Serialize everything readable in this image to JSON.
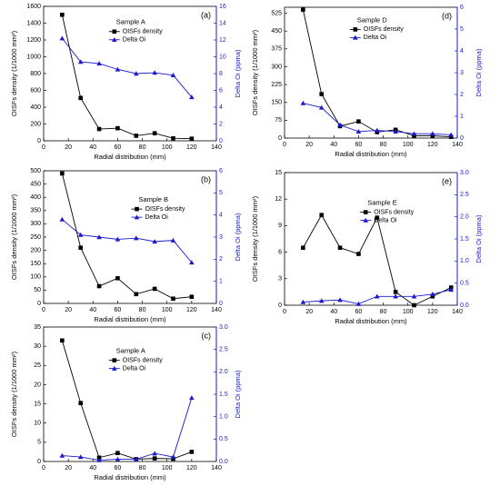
{
  "chart_data": [
    {
      "type": "line",
      "panel_label": "(a)",
      "legend_title": "Sample A",
      "x_label": "Radial distribution (mm)",
      "y_label": "OISFs density (1/1000 mm²)",
      "y2_label": "Delta Oi (ppma)",
      "xlim": [
        0,
        140
      ],
      "xticks": [
        0,
        20,
        40,
        60,
        80,
        100,
        120,
        140
      ],
      "ylim": [
        0,
        1600
      ],
      "yticks": [
        0,
        200,
        400,
        600,
        800,
        1000,
        1200,
        1400,
        1600
      ],
      "y2lim": [
        0,
        16
      ],
      "y2ticks": [
        0,
        2,
        4,
        6,
        8,
        10,
        12,
        14,
        16
      ],
      "x": [
        15,
        30,
        45,
        60,
        75,
        90,
        105,
        120
      ],
      "series": [
        {
          "name": "OISFs density",
          "color": "#000000",
          "marker": "square",
          "values": [
            1500,
            510,
            140,
            150,
            60,
            90,
            30,
            25
          ]
        },
        {
          "name": "Delta Oi",
          "color": "#1a1acc",
          "marker": "triangle",
          "axis": "y2",
          "values": [
            12.2,
            9.4,
            9.2,
            8.5,
            8.0,
            8.1,
            7.8,
            5.2
          ]
        }
      ]
    },
    {
      "type": "line",
      "panel_label": "(d)",
      "legend_title": "Sample D",
      "x_label": "Radial distribution (mm)",
      "y_label": "OISFs density (1/1000 mm²)",
      "y2_label": "Delta Oi (ppma)",
      "xlim": [
        0,
        140
      ],
      "xticks": [
        0,
        20,
        40,
        60,
        80,
        100,
        120,
        140
      ],
      "ylim": [
        0,
        550
      ],
      "yticks": [
        0,
        75,
        150,
        225,
        300,
        375,
        450,
        525
      ],
      "y2lim": [
        0,
        6
      ],
      "y2ticks": [
        0,
        1,
        2,
        3,
        4,
        5,
        6
      ],
      "x": [
        15,
        30,
        45,
        60,
        75,
        90,
        105,
        120,
        135
      ],
      "series": [
        {
          "name": "OISFs density",
          "color": "#000000",
          "marker": "square",
          "values": [
            540,
            185,
            50,
            70,
            25,
            35,
            10,
            10,
            5
          ]
        },
        {
          "name": "Delta Oi",
          "color": "#1a1acc",
          "marker": "triangle",
          "axis": "y2",
          "values": [
            1.6,
            1.4,
            0.6,
            0.3,
            0.35,
            0.3,
            0.2,
            0.2,
            0.15
          ]
        }
      ]
    },
    {
      "type": "line",
      "panel_label": "(b)",
      "legend_title": "Sample B",
      "x_label": "Radial distribution (mm)",
      "y_label": "OISFs density (1/1000 mm²)",
      "y2_label": "Delta Oi (ppma)",
      "xlim": [
        0,
        140
      ],
      "xticks": [
        0,
        20,
        40,
        60,
        80,
        100,
        120,
        140
      ],
      "ylim": [
        0,
        500
      ],
      "yticks": [
        0,
        50,
        100,
        150,
        200,
        250,
        300,
        350,
        400,
        450,
        500
      ],
      "y2lim": [
        0,
        6
      ],
      "y2ticks": [
        0,
        1,
        2,
        3,
        4,
        5,
        6
      ],
      "x": [
        15,
        30,
        45,
        60,
        75,
        90,
        105,
        120
      ],
      "series": [
        {
          "name": "OISFs density",
          "color": "#000000",
          "marker": "square",
          "values": [
            490,
            210,
            65,
            95,
            35,
            55,
            18,
            25
          ]
        },
        {
          "name": "Delta Oi",
          "color": "#1a1acc",
          "marker": "triangle",
          "axis": "y2",
          "values": [
            3.8,
            3.1,
            3.0,
            2.9,
            2.95,
            2.8,
            2.85,
            1.85
          ]
        }
      ]
    },
    {
      "type": "line",
      "panel_label": "(e)",
      "legend_title": "Sample E",
      "x_label": "Radial distribution (mm)",
      "y_label": "OISFs density (1/1000 mm²)",
      "y2_label": "Delta Oi (ppma)",
      "xlim": [
        0,
        140
      ],
      "xticks": [
        0,
        20,
        40,
        60,
        80,
        100,
        120,
        140
      ],
      "ylim": [
        0,
        15
      ],
      "yticks": [
        0,
        3,
        6,
        9,
        12,
        15
      ],
      "y2lim": [
        0,
        3
      ],
      "y2ticks": [
        {
          "value": 0,
          "label": "0.0"
        },
        0.5,
        {
          "value": 1,
          "label": "1.0"
        },
        1.5,
        {
          "value": 2,
          "label": "2.0"
        },
        2.5,
        {
          "value": 3,
          "label": "3.0"
        }
      ],
      "x": [
        15,
        30,
        45,
        60,
        75,
        90,
        105,
        120,
        135
      ],
      "series": [
        {
          "name": "OISFs density",
          "color": "#000000",
          "marker": "square",
          "values": [
            6.5,
            10.2,
            6.5,
            5.8,
            9.9,
            1.5,
            0,
            1.0,
            2.0
          ]
        },
        {
          "name": "Delta Oi",
          "color": "#1a1acc",
          "marker": "triangle",
          "axis": "y2",
          "values": [
            0.07,
            0.1,
            0.12,
            0.03,
            0.2,
            0.2,
            0.2,
            0.25,
            0.35
          ]
        }
      ]
    },
    {
      "type": "line",
      "panel_label": "(c)",
      "legend_title": "Sample A",
      "x_label": "Radial distribution (mm)",
      "y_label": "OISFs density (1/1000 mm²)",
      "y2_label": "Delta Oi (ppma)",
      "xlim": [
        0,
        140
      ],
      "xticks": [
        0,
        20,
        40,
        60,
        80,
        100,
        120,
        140
      ],
      "ylim": [
        0,
        35
      ],
      "yticks": [
        0,
        5,
        10,
        15,
        20,
        25,
        30,
        35
      ],
      "y2lim": [
        0,
        3
      ],
      "y2ticks": [
        {
          "value": 0,
          "label": "0.0"
        },
        0.5,
        {
          "value": 1,
          "label": "1.0"
        },
        1.5,
        {
          "value": 2,
          "label": "2.0"
        },
        2.5,
        {
          "value": 3,
          "label": "3.0"
        }
      ],
      "x": [
        15,
        30,
        45,
        60,
        75,
        90,
        105,
        120
      ],
      "series": [
        {
          "name": "OISFs density",
          "color": "#000000",
          "marker": "square",
          "values": [
            31.5,
            15.2,
            1.0,
            2.2,
            0.6,
            0.8,
            0.7,
            2.5
          ]
        },
        {
          "name": "Delta Oi",
          "color": "#1a1acc",
          "marker": "triangle",
          "axis": "y2",
          "values": [
            0.13,
            0.1,
            0.03,
            0.05,
            0.05,
            0.18,
            0.1,
            1.42
          ]
        }
      ]
    }
  ]
}
